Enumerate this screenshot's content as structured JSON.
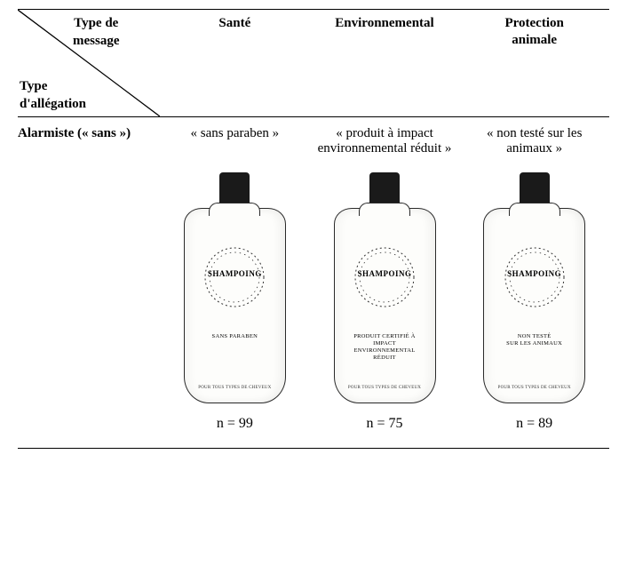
{
  "header": {
    "diag_upper_line1": "Type de",
    "diag_upper_line2": "message",
    "diag_lower_line1": "Type",
    "diag_lower_line2": "d'allégation",
    "columns": [
      {
        "title_line1": "Santé",
        "title_line2": ""
      },
      {
        "title_line1": "Environnemental",
        "title_line2": ""
      },
      {
        "title_line1": "Protection",
        "title_line2": "animale"
      }
    ]
  },
  "row": {
    "label": "Alarmiste (« sans »)",
    "cells": [
      {
        "claim": "« sans paraben »"
      },
      {
        "claim": "« produit à impact environnemental réduit »"
      },
      {
        "claim": "« non testé sur les animaux »"
      }
    ]
  },
  "bottle": {
    "product_name": "SHAMPOING",
    "footer": "POUR TOUS TYPES DE CHEVEUX",
    "labels": [
      "SANS PARABEN",
      "PRODUIT CERTIFIÉ À\nIMPACT\nENVIRONNEMENTAL\nRÉDUIT",
      "NON TESTÉ\nSUR LES ANIMAUX"
    ],
    "cap_color": "#1a1a1a",
    "body_color": "#fdfdfb",
    "outline_color": "#2a2a2a"
  },
  "counts": [
    "n = 99",
    "n = 75",
    "n = 89"
  ]
}
